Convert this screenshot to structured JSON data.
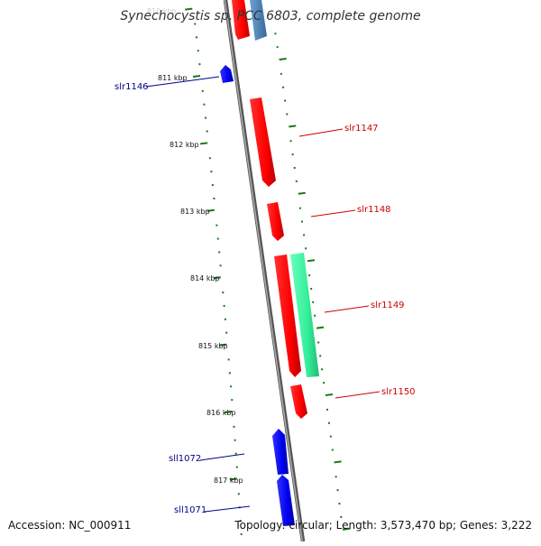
{
  "title": "Synechocystis sp. PCC 6803, complete genome",
  "footer": {
    "accession": "Accession: NC_000911",
    "summary": "Topology: circular; Length: 3,573,470 bp; Genes: 3,222"
  },
  "colors": {
    "backbone": "#8a8a8a",
    "forward_gene": "#ff0000",
    "reverse_gene": "#0000ee",
    "tick": "#1a7a1a",
    "forward_label": "#cc0000",
    "reverse_label": "#00008b",
    "green_feature": "#33ee99",
    "steel_feature": "#4a82b4"
  },
  "ticks": {
    "unit": "kbp",
    "labels": [
      "811 kbp",
      "812 kbp",
      "813 kbp",
      "814 kbp",
      "815 kbp",
      "816 kbp",
      "817 kbp"
    ]
  },
  "genes": [
    {
      "name": "slr1146",
      "strand": "reverse"
    },
    {
      "name": "slr1147",
      "strand": "forward"
    },
    {
      "name": "slr1148",
      "strand": "forward"
    },
    {
      "name": "slr1149",
      "strand": "forward"
    },
    {
      "name": "slr1150",
      "strand": "forward"
    },
    {
      "name": "sll1072",
      "strand": "reverse"
    },
    {
      "name": "sll1071",
      "strand": "reverse"
    }
  ]
}
